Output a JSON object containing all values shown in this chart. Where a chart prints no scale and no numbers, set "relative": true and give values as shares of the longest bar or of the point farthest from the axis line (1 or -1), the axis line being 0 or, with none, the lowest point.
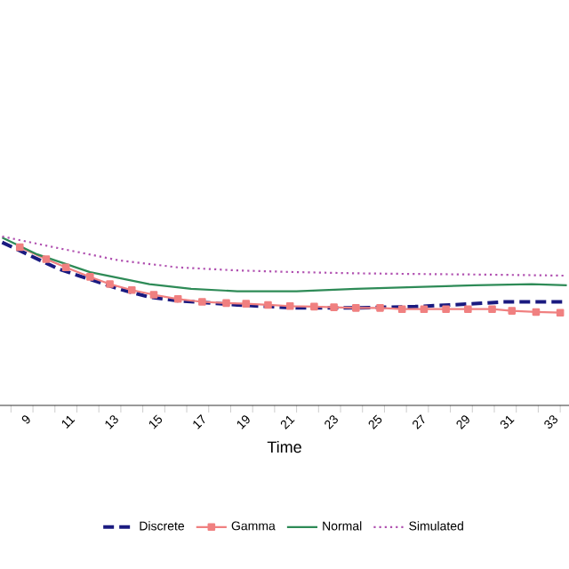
{
  "chart_data": {
    "type": "line",
    "xlabel": "Time",
    "relative": true,
    "legend": "bottom",
    "xlim": [
      7.5,
      33.4
    ],
    "xticks": [
      {
        "value": 8,
        "label": null
      },
      9,
      {
        "value": 10,
        "label": null
      },
      11,
      {
        "value": 12,
        "label": null
      },
      13,
      {
        "value": 14,
        "label": null
      },
      15,
      {
        "value": 16,
        "label": null
      },
      17,
      {
        "value": 18,
        "label": null
      },
      19,
      {
        "value": 20,
        "label": null
      },
      21,
      {
        "value": 22,
        "label": null
      },
      23,
      {
        "value": 24,
        "label": null
      },
      25,
      {
        "value": 26,
        "label": null
      },
      27,
      {
        "value": 28,
        "label": null
      },
      29,
      {
        "value": 30,
        "label": null
      },
      31,
      {
        "value": 32,
        "label": null
      },
      33
    ],
    "series": [
      {
        "name": "Discrete",
        "color": "#1a1a80",
        "line_style": "dashed",
        "marker": "none",
        "x": [
          7.6,
          10.2,
          11.6,
          12.9,
          14.3,
          15.6,
          18.3,
          21.0,
          23.7,
          26.4,
          29.1,
          30.4,
          33.3
        ],
        "values": [
          0.965,
          0.806,
          0.746,
          0.69,
          0.641,
          0.62,
          0.595,
          0.577,
          0.577,
          0.585,
          0.602,
          0.613,
          0.613
        ]
      },
      {
        "name": "Gamma",
        "color": "#f08080",
        "line_style": "solid",
        "marker": "square",
        "x": [
          8.4,
          9.6,
          10.5,
          11.6,
          12.5,
          13.5,
          14.5,
          15.6,
          16.7,
          17.8,
          18.7,
          19.7,
          20.7,
          21.8,
          22.7,
          23.7,
          24.8,
          25.8,
          26.8,
          27.8,
          28.8,
          29.9,
          30.8,
          31.9,
          33.0
        ],
        "values": [
          0.937,
          0.866,
          0.817,
          0.761,
          0.718,
          0.683,
          0.655,
          0.63,
          0.613,
          0.606,
          0.602,
          0.595,
          0.588,
          0.585,
          0.581,
          0.577,
          0.577,
          0.57,
          0.57,
          0.57,
          0.57,
          0.57,
          0.56,
          0.553,
          0.549
        ]
      },
      {
        "name": "Normal",
        "color": "#2e8b57",
        "line_style": "solid",
        "marker": "none",
        "x": [
          7.6,
          9.2,
          11.6,
          14.3,
          16.2,
          18.3,
          21.0,
          23.7,
          26.4,
          29.1,
          31.7,
          33.3
        ],
        "values": [
          0.993,
          0.894,
          0.789,
          0.718,
          0.69,
          0.676,
          0.676,
          0.69,
          0.701,
          0.711,
          0.718,
          0.711
        ]
      },
      {
        "name": "Simulated",
        "color": "#b050b0",
        "line_style": "dotted",
        "marker": "none",
        "x": [
          7.6,
          10.2,
          12.9,
          15.6,
          18.3,
          21.0,
          23.7,
          26.4,
          29.1,
          31.7,
          33.3
        ],
        "values": [
          1.0,
          0.93,
          0.859,
          0.817,
          0.799,
          0.789,
          0.782,
          0.778,
          0.775,
          0.771,
          0.768
        ]
      }
    ]
  }
}
